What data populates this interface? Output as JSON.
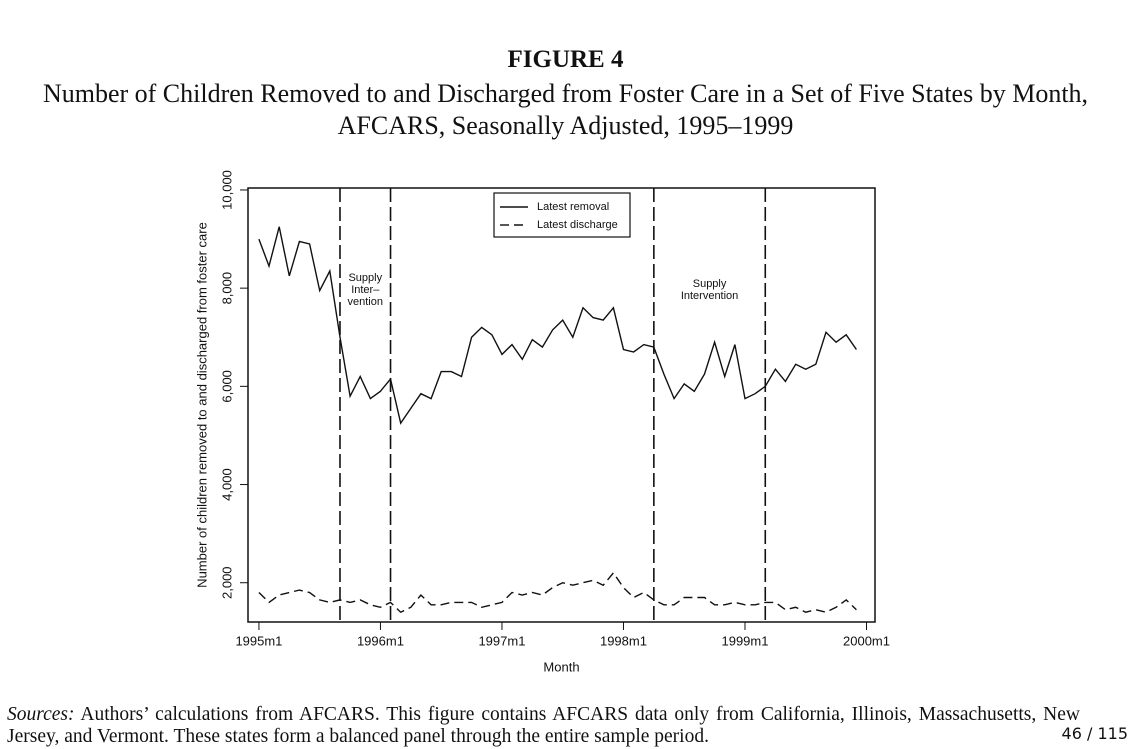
{
  "figure_label": "FIGURE 4",
  "subtitle": "Number of Children Removed to and Discharged from Foster Care in a Set of Five States by Month, AFCARS, Seasonally Adjusted, 1995–1999",
  "sources": {
    "label": "Sources:",
    "text": "Authors’ calculations from AFCARS. This figure contains AFCARS data only from California, Illinois, Massachusetts, New Jersey, and Vermont. These states form a balanced panel through the entire sample period."
  },
  "page_number": "46 / 115",
  "chart_data": {
    "type": "line",
    "xlabel": "Month",
    "ylabel": "Number of children removed to and discharged from foster care",
    "x": [
      1995,
      1995.083,
      1995.167,
      1995.25,
      1995.333,
      1995.417,
      1995.5,
      1995.583,
      1995.667,
      1995.75,
      1995.833,
      1995.917,
      1996,
      1996.083,
      1996.167,
      1996.25,
      1996.333,
      1996.417,
      1996.5,
      1996.583,
      1996.667,
      1996.75,
      1996.833,
      1996.917,
      1997,
      1997.083,
      1997.167,
      1997.25,
      1997.333,
      1997.417,
      1997.5,
      1997.583,
      1997.667,
      1997.75,
      1997.833,
      1997.917,
      1998,
      1998.083,
      1998.167,
      1998.25,
      1998.333,
      1998.417,
      1998.5,
      1998.583,
      1998.667,
      1998.75,
      1998.833,
      1998.917,
      1999,
      1999.083,
      1999.167,
      1999.25,
      1999.333,
      1999.417,
      1999.5,
      1999.583,
      1999.667,
      1999.75,
      1999.833,
      1999.917
    ],
    "series": [
      {
        "name": "Latest removal",
        "color": "#111111",
        "line_style": "solid",
        "values": [
          9000,
          8450,
          9250,
          8250,
          8950,
          8900,
          7950,
          8350,
          7000,
          5800,
          6200,
          5750,
          5900,
          6150,
          5250,
          5550,
          5850,
          5750,
          6300,
          6300,
          6200,
          7000,
          7200,
          7050,
          6650,
          6850,
          6550,
          6950,
          6800,
          7150,
          7350,
          7000,
          7600,
          7400,
          7350,
          7600,
          6750,
          6700,
          6850,
          6800,
          6250,
          5750,
          6050,
          5900,
          6250,
          6900,
          6200,
          6850,
          5750,
          5850,
          6000,
          6350,
          6100,
          6450,
          6350,
          6450,
          7100,
          6900,
          7050,
          6750
        ]
      },
      {
        "name": "Latest discharge",
        "color": "#111111",
        "line_style": "dashed",
        "values": [
          1800,
          1600,
          1750,
          1800,
          1850,
          1800,
          1650,
          1600,
          1650,
          1600,
          1650,
          1550,
          1500,
          1600,
          1400,
          1500,
          1750,
          1550,
          1550,
          1600,
          1600,
          1600,
          1500,
          1550,
          1600,
          1800,
          1750,
          1800,
          1750,
          1900,
          2000,
          1950,
          2000,
          2050,
          1950,
          2200,
          1900,
          1700,
          1800,
          1650,
          1550,
          1550,
          1700,
          1700,
          1700,
          1550,
          1550,
          1600,
          1550,
          1550,
          1600,
          1600,
          1450,
          1500,
          1400,
          1450,
          1400,
          1500,
          1650,
          1450
        ]
      }
    ],
    "interventions": [
      1995.667,
      1996.083,
      1998.25,
      1999.167
    ],
    "annotations": [
      [
        "Supply",
        "Inter–",
        "vention"
      ],
      [
        "Supply",
        "Intervention"
      ]
    ],
    "xlim": [
      1994.91,
      2000.07
    ],
    "xticks": [
      {
        "value": 1995,
        "label": "1995m1"
      },
      {
        "value": 1996,
        "label": "1996m1"
      },
      {
        "value": 1997,
        "label": "1997m1"
      },
      {
        "value": 1998,
        "label": "1998m1"
      },
      {
        "value": 1999,
        "label": "1999m1"
      },
      {
        "value": 2000,
        "label": "2000m1"
      }
    ],
    "ylim": [
      1200,
      10040
    ],
    "yticks": [
      {
        "value": 2000,
        "label": "2,000"
      },
      {
        "value": 4000,
        "label": "4,000"
      },
      {
        "value": 6000,
        "label": "6,000"
      },
      {
        "value": 8000,
        "label": "8,000"
      },
      {
        "value": 10000,
        "label": "10,000"
      }
    ],
    "legend": "top"
  }
}
